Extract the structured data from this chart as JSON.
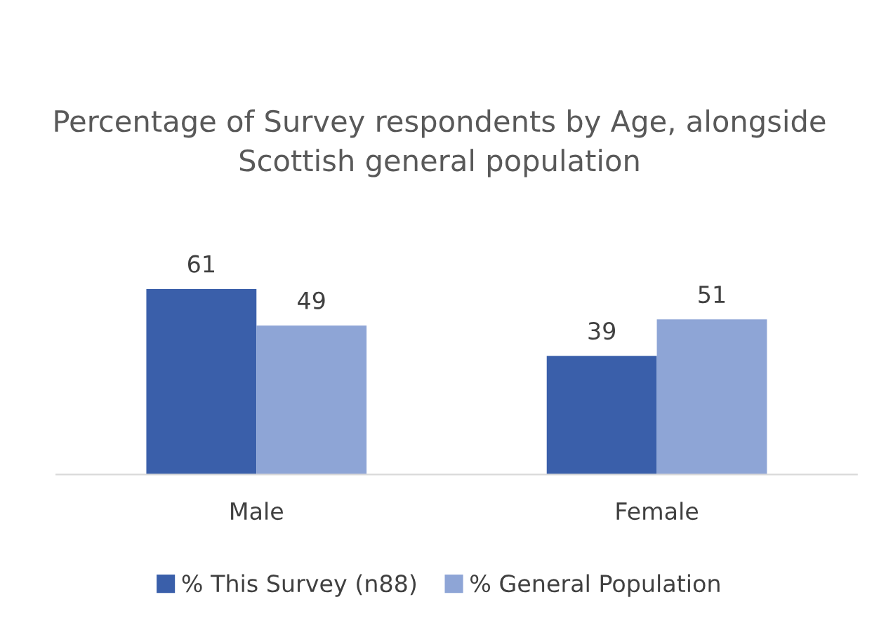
{
  "chart_data": {
    "type": "bar",
    "title": "Percentage of Survey respondents by Age, alongside Scottish general population",
    "categories": [
      "Male",
      "Female"
    ],
    "series": [
      {
        "name": "% This Survey (n88)",
        "color": "#3a5faa",
        "values": [
          61,
          39
        ]
      },
      {
        "name": "% General Population",
        "color": "#8ea5d6",
        "values": [
          49,
          51
        ]
      }
    ],
    "data_labels": true,
    "legend": "bottom",
    "grid": false
  }
}
